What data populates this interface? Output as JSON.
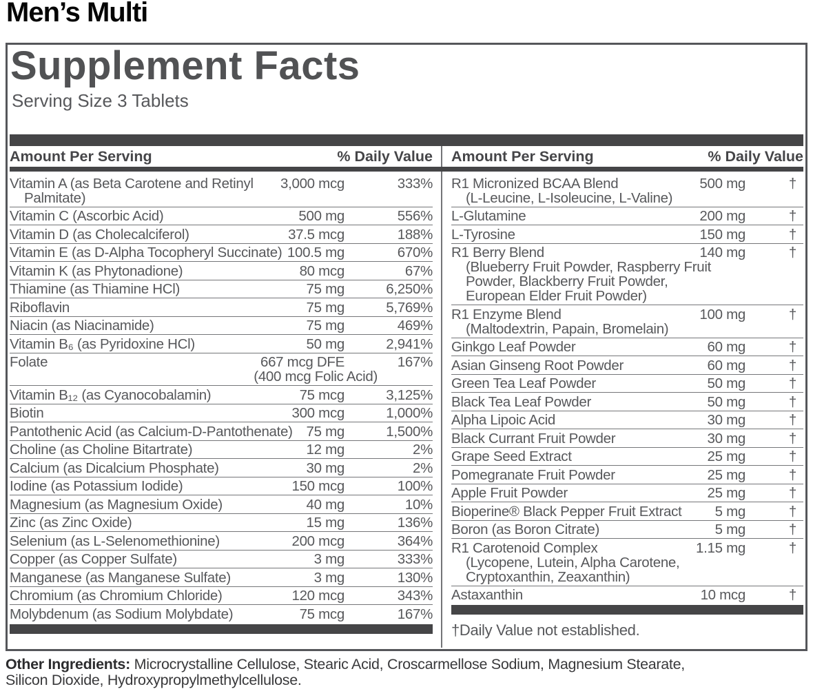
{
  "product_title": "Men’s Multi",
  "panel": {
    "title": "Supplement Facts",
    "serving_size": "Serving Size 3 Tablets",
    "amount_header": "Amount Per Serving",
    "dv_header": "% Daily Value",
    "footnote": "†Daily Value not established.",
    "left_rows": [
      {
        "lines": [
          "Vitamin A (as Beta Carotene and Retinyl",
          "Palmitate)"
        ],
        "amount": "3,000 mcg",
        "dv": "333%"
      },
      {
        "lines": [
          "Vitamin C (Ascorbic Acid)"
        ],
        "amount": "500 mg",
        "dv": "556%"
      },
      {
        "lines": [
          "Vitamin D (as Cholecalciferol)"
        ],
        "amount": "37.5 mcg",
        "dv": "188%"
      },
      {
        "lines": [
          "Vitamin E (as D-Alpha Tocopheryl Succinate)"
        ],
        "amount": "100.5 mg",
        "dv": "670%"
      },
      {
        "lines": [
          "Vitamin K (as Phytonadione)"
        ],
        "amount": "80 mcg",
        "dv": "67%"
      },
      {
        "lines": [
          "Thiamine (as Thiamine HCl)"
        ],
        "amount": "75 mg",
        "dv": "6,250%"
      },
      {
        "lines": [
          "Riboflavin"
        ],
        "amount": "75 mg",
        "dv": "5,769%"
      },
      {
        "lines": [
          "Niacin (as Niacinamide)"
        ],
        "amount": "75 mg",
        "dv": "469%"
      },
      {
        "lines": [
          "Vitamin B₆ (as Pyridoxine HCl)"
        ],
        "amount": "50 mg",
        "dv": "2,941%"
      },
      {
        "lines": [
          "Folate"
        ],
        "amount": "667 mcg DFE",
        "amount2": "(400 mcg Folic Acid)",
        "dv": "167%"
      },
      {
        "lines": [
          "Vitamin B₁₂ (as Cyanocobalamin)"
        ],
        "amount": "75 mcg",
        "dv": "3,125%"
      },
      {
        "lines": [
          "Biotin"
        ],
        "amount": "300 mcg",
        "dv": "1,000%"
      },
      {
        "lines": [
          "Pantothenic Acid (as Calcium-D-Pantothenate)"
        ],
        "amount": "75 mg",
        "dv": "1,500%"
      },
      {
        "lines": [
          "Choline (as Choline Bitartrate)"
        ],
        "amount": "12 mg",
        "dv": "2%"
      },
      {
        "lines": [
          "Calcium (as Dicalcium Phosphate)"
        ],
        "amount": "30 mg",
        "dv": "2%"
      },
      {
        "lines": [
          "Iodine (as Potassium Iodide)"
        ],
        "amount": "150 mcg",
        "dv": "100%"
      },
      {
        "lines": [
          "Magnesium (as Magnesium Oxide)"
        ],
        "amount": "40 mg",
        "dv": "10%"
      },
      {
        "lines": [
          "Zinc (as Zinc Oxide)"
        ],
        "amount": "15 mg",
        "dv": "136%"
      },
      {
        "lines": [
          "Selenium (as L-Selenomethionine)"
        ],
        "amount": "200 mcg",
        "dv": "364%"
      },
      {
        "lines": [
          "Copper (as Copper Sulfate)"
        ],
        "amount": "3 mg",
        "dv": "333%"
      },
      {
        "lines": [
          "Manganese (as Manganese Sulfate)"
        ],
        "amount": "3 mg",
        "dv": "130%"
      },
      {
        "lines": [
          "Chromium (as Chromium Chloride)"
        ],
        "amount": "120 mcg",
        "dv": "343%"
      },
      {
        "lines": [
          "Molybdenum (as Sodium Molybdate)"
        ],
        "amount": "75 mcg",
        "dv": "167%"
      }
    ],
    "right_rows": [
      {
        "lines": [
          "R1 Micronized BCAA Blend",
          "(L-Leucine, L-Isoleucine, L-Valine)"
        ],
        "amount": "500 mg",
        "dv": "†"
      },
      {
        "lines": [
          "L-Glutamine"
        ],
        "amount": "200 mg",
        "dv": "†"
      },
      {
        "lines": [
          "L-Tyrosine"
        ],
        "amount": "150 mg",
        "dv": "†"
      },
      {
        "lines": [
          "R1 Berry Blend",
          "(Blueberry Fruit Powder, Raspberry Fruit",
          "Powder, Blackberry Fruit Powder,",
          "European Elder Fruit Powder)"
        ],
        "amount": "140 mg",
        "dv": "†"
      },
      {
        "lines": [
          "R1 Enzyme Blend",
          "(Maltodextrin, Papain, Bromelain)"
        ],
        "amount": "100 mg",
        "dv": "†"
      },
      {
        "lines": [
          "Ginkgo Leaf Powder"
        ],
        "amount": "60 mg",
        "dv": "†"
      },
      {
        "lines": [
          "Asian Ginseng Root Powder"
        ],
        "amount": "60 mg",
        "dv": "†"
      },
      {
        "lines": [
          "Green Tea Leaf Powder"
        ],
        "amount": "50 mg",
        "dv": "†"
      },
      {
        "lines": [
          "Black Tea Leaf Powder"
        ],
        "amount": "50 mg",
        "dv": "†"
      },
      {
        "lines": [
          "Alpha Lipoic Acid"
        ],
        "amount": "30 mg",
        "dv": "†"
      },
      {
        "lines": [
          "Black Currant Fruit Powder"
        ],
        "amount": "30 mg",
        "dv": "†"
      },
      {
        "lines": [
          "Grape Seed Extract"
        ],
        "amount": "25 mg",
        "dv": "†"
      },
      {
        "lines": [
          "Pomegranate Fruit Powder"
        ],
        "amount": "25 mg",
        "dv": "†"
      },
      {
        "lines": [
          "Apple Fruit Powder"
        ],
        "amount": "25 mg",
        "dv": "†"
      },
      {
        "lines": [
          "Bioperine® Black Pepper Fruit Extract"
        ],
        "amount": "5 mg",
        "dv": "†"
      },
      {
        "lines": [
          "Boron (as Boron Citrate)"
        ],
        "amount": "5 mg",
        "dv": "†"
      },
      {
        "lines": [
          "R1 Carotenoid Complex",
          "(Lycopene, Lutein, Alpha Carotene,",
          "Cryptoxanthin, Zeaxanthin)"
        ],
        "amount": "1.15 mg",
        "dv": "†"
      },
      {
        "lines": [
          "Astaxanthin"
        ],
        "amount": "10 mcg",
        "dv": "†"
      }
    ]
  },
  "other_ingredients": {
    "label": "Other Ingredients:",
    "text": " Microcrystalline Cellulose, Stearic Acid, Croscarmellose Sodium, Magnesium Stearate, Silicon Dioxide, Hydroxypropylmethylcellulose."
  },
  "colors": {
    "title_black": "#050505",
    "panel_text_gray": "#57585b",
    "bar_dark_gray": "#454547",
    "separator_gray": "#747578",
    "border_gray": "#55565a"
  }
}
